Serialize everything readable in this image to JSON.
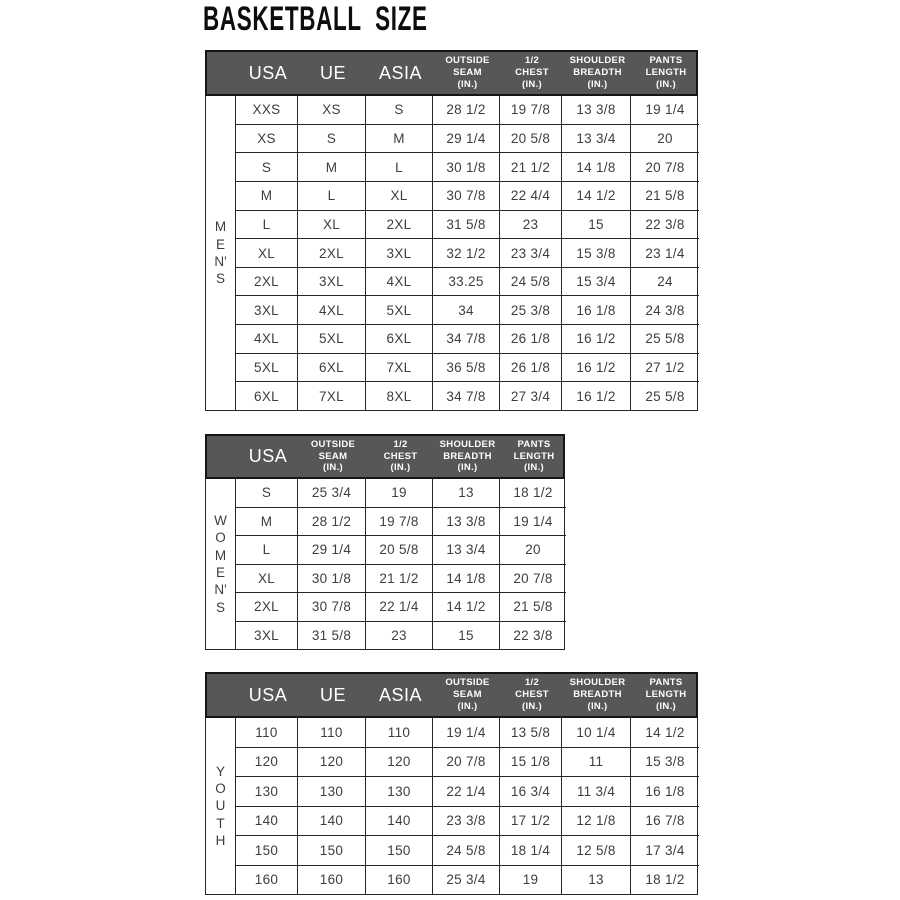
{
  "title": "BASKETBALL  SIZE",
  "colors": {
    "header_bg": "#575759",
    "header_text": "#ffffff",
    "body_text": "#3e3e40",
    "border": "#262626",
    "page_bg": "#ffffff"
  },
  "tables": [
    {
      "name": "mens",
      "group_label": "MEN'S",
      "group_lines": "M\nE\nN'\nS",
      "columns": [
        {
          "label": "USA",
          "big": true
        },
        {
          "label": "UE",
          "big": true
        },
        {
          "label": "ASIA",
          "big": true
        },
        {
          "label": "OUTSIDE\nSEAM\n(IN.)",
          "big": false
        },
        {
          "label": "1/2\nCHEST\n(IN.)",
          "big": false
        },
        {
          "label": "SHOULDER\nBREADTH\n(IN.)",
          "big": false
        },
        {
          "label": "PANTS\nLENGTH\n(IN.)",
          "big": false
        }
      ],
      "rows": [
        [
          "XXS",
          "XS",
          "S",
          "28 1/2",
          "19 7/8",
          "13 3/8",
          "19 1/4"
        ],
        [
          "XS",
          "S",
          "M",
          "29 1/4",
          "20 5/8",
          "13 3/4",
          "20"
        ],
        [
          "S",
          "M",
          "L",
          "30 1/8",
          "21 1/2",
          "14 1/8",
          "20 7/8"
        ],
        [
          "M",
          "L",
          "XL",
          "30 7/8",
          "22 4/4",
          "14 1/2",
          "21 5/8"
        ],
        [
          "L",
          "XL",
          "2XL",
          "31 5/8",
          "23",
          "15",
          "22 3/8"
        ],
        [
          "XL",
          "2XL",
          "3XL",
          "32 1/2",
          "23 3/4",
          "15 3/8",
          "23 1/4"
        ],
        [
          "2XL",
          "3XL",
          "4XL",
          "33.25",
          "24 5/8",
          "15 3/4",
          "24"
        ],
        [
          "3XL",
          "4XL",
          "5XL",
          "34",
          "25 3/8",
          "16 1/8",
          "24 3/8"
        ],
        [
          "4XL",
          "5XL",
          "6XL",
          "34 7/8",
          "26 1/8",
          "16 1/2",
          "25 5/8"
        ],
        [
          "5XL",
          "6XL",
          "7XL",
          "36 5/8",
          "26 1/8",
          "16 1/2",
          "27 1/2"
        ],
        [
          "6XL",
          "7XL",
          "8XL",
          "34 7/8",
          "27 3/4",
          "16 1/2",
          "25 5/8"
        ]
      ]
    },
    {
      "name": "womens",
      "group_label": "WOMEN'S",
      "group_lines": "W\nO\nM\nE\nN'\nS",
      "columns": [
        {
          "label": "USA",
          "big": true
        },
        {
          "label": "OUTSIDE\nSEAM\n(IN.)",
          "big": false
        },
        {
          "label": "1/2\nCHEST\n(IN.)",
          "big": false
        },
        {
          "label": "SHOULDER\nBREADTH\n(IN.)",
          "big": false
        },
        {
          "label": "PANTS\nLENGTH\n(IN.)",
          "big": false
        }
      ],
      "rows": [
        [
          "S",
          "25 3/4",
          "19",
          "13",
          "18 1/2"
        ],
        [
          "M",
          "28 1/2",
          "19 7/8",
          "13 3/8",
          "19 1/4"
        ],
        [
          "L",
          "29 1/4",
          "20 5/8",
          "13 3/4",
          "20"
        ],
        [
          "XL",
          "30 1/8",
          "21 1/2",
          "14 1/8",
          "20 7/8"
        ],
        [
          "2XL",
          "30 7/8",
          "22 1/4",
          "14 1/2",
          "21 5/8"
        ],
        [
          "3XL",
          "31 5/8",
          "23",
          "15",
          "22 3/8"
        ]
      ]
    },
    {
      "name": "youth",
      "group_label": "YOUTH",
      "group_lines": "Y\nO\nU\nT\nH",
      "columns": [
        {
          "label": "USA",
          "big": true
        },
        {
          "label": "UE",
          "big": true
        },
        {
          "label": "ASIA",
          "big": true
        },
        {
          "label": "OUTSIDE\nSEAM\n(IN.)",
          "big": false
        },
        {
          "label": "1/2\nCHEST\n(IN.)",
          "big": false
        },
        {
          "label": "SHOULDER\nBREADTH\n(IN.)",
          "big": false
        },
        {
          "label": "PANTS\nLENGTH\n(IN.)",
          "big": false
        }
      ],
      "rows": [
        [
          "110",
          "110",
          "110",
          "19 1/4",
          "13 5/8",
          "10 1/4",
          "14 1/2"
        ],
        [
          "120",
          "120",
          "120",
          "20 7/8",
          "15 1/8",
          "11",
          "15 3/8"
        ],
        [
          "130",
          "130",
          "130",
          "22 1/4",
          "16 3/4",
          "11 3/4",
          "16 1/8"
        ],
        [
          "140",
          "140",
          "140",
          "23 3/8",
          "17 1/2",
          "12 1/8",
          "16 7/8"
        ],
        [
          "150",
          "150",
          "150",
          "24 5/8",
          "18 1/4",
          "12 5/8",
          "17 3/4"
        ],
        [
          "160",
          "160",
          "160",
          "25 3/4",
          "19",
          "13",
          "18 1/2"
        ]
      ]
    }
  ]
}
